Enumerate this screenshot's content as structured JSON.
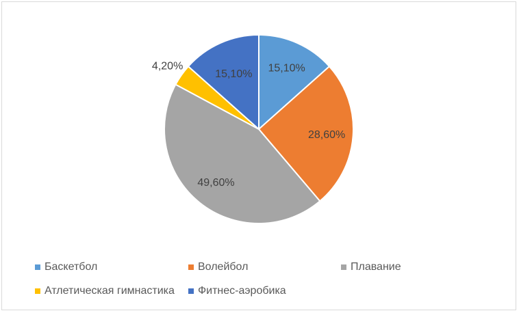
{
  "chart_data": {
    "type": "pie",
    "title": "",
    "categories": [
      "Баскетбол",
      "Волейбол",
      "Плавание",
      "Атлетическая гимнастика",
      "Фитнес-аэробика"
    ],
    "values": [
      15.1,
      28.6,
      49.6,
      4.2,
      15.1
    ],
    "labels": [
      "15,10%",
      "28,60%",
      "49,60%",
      "4,20%",
      "15,10%"
    ],
    "colors": [
      "#5b9bd5",
      "#ed7d31",
      "#a5a5a5",
      "#ffc000",
      "#4472c4"
    ],
    "legend_position": "bottom"
  }
}
